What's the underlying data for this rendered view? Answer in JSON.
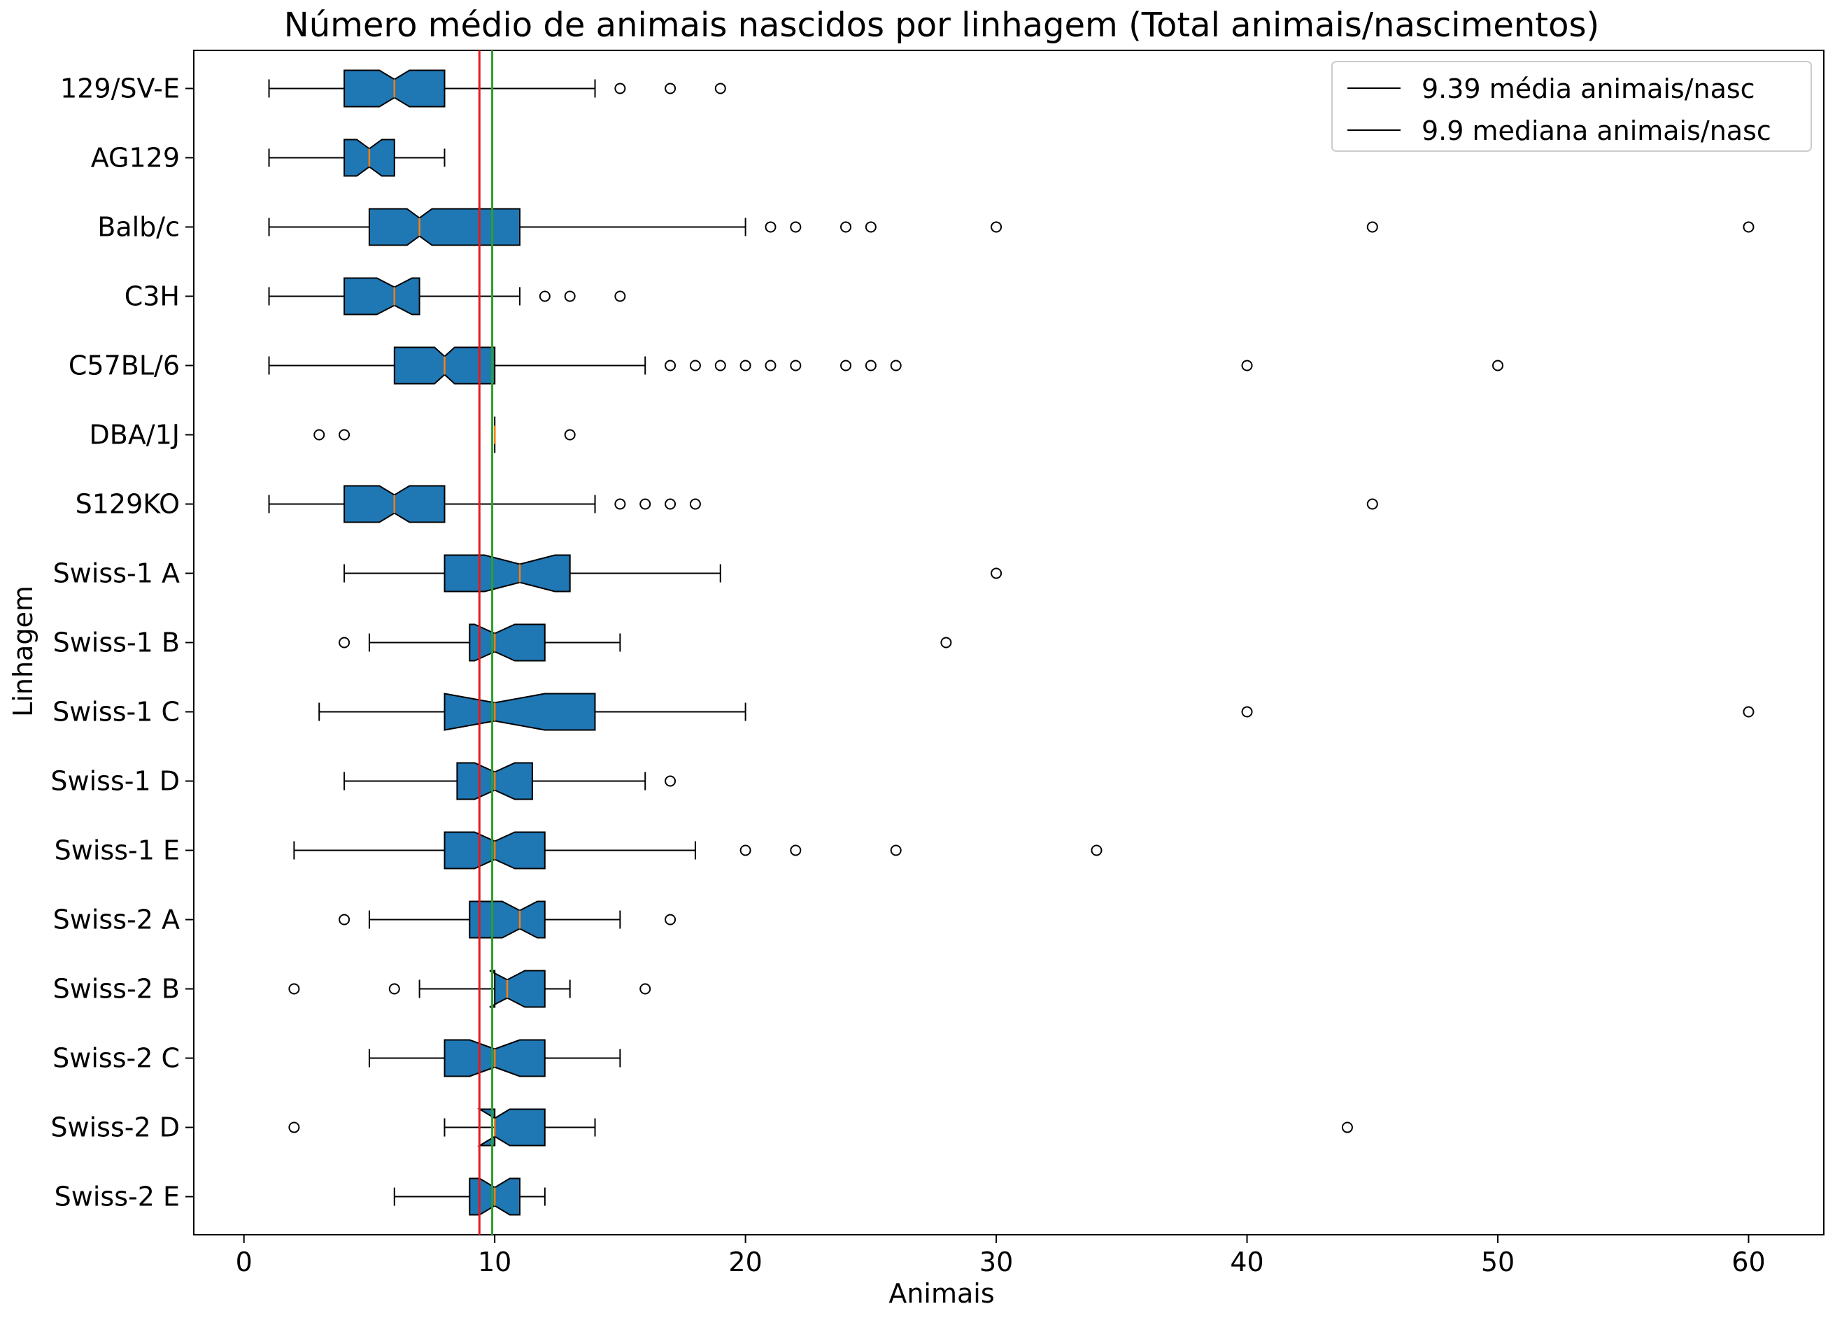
{
  "chart_data": {
    "type": "box",
    "orientation": "horizontal",
    "notched": true,
    "title": "Número médio de animais nascidos por linhagem (Total animais/nascimentos)",
    "xlabel": "Animais",
    "ylabel": "Linhagem",
    "xlim": [
      -2,
      63
    ],
    "xticks": [
      0,
      10,
      20,
      30,
      40,
      50,
      60
    ],
    "box_color": "#1f77b4",
    "median_color": "#ff7f0e",
    "categories": [
      "129/SV-E",
      "AG129",
      "Balb/c",
      "C3H",
      "C57BL/6",
      "DBA/1J",
      "S129KO",
      "Swiss-1 A",
      "Swiss-1 B",
      "Swiss-1 C",
      "Swiss-1 D",
      "Swiss-1 E",
      "Swiss-2 A",
      "Swiss-2 B",
      "Swiss-2 C",
      "Swiss-2 D",
      "Swiss-2 E"
    ],
    "boxes": [
      {
        "label": "129/SV-E",
        "whislo": 1,
        "q1": 4,
        "med": 6,
        "q3": 8,
        "whishi": 14,
        "notch_lo": 5.4,
        "notch_hi": 6.6,
        "fliers": [
          15,
          17,
          19
        ]
      },
      {
        "label": "AG129",
        "whislo": 1,
        "q1": 4,
        "med": 5,
        "q3": 6,
        "whishi": 8,
        "notch_lo": 4.5,
        "notch_hi": 5.5,
        "fliers": []
      },
      {
        "label": "Balb/c",
        "whislo": 1,
        "q1": 5,
        "med": 7,
        "q3": 11,
        "whishi": 20,
        "notch_lo": 6.5,
        "notch_hi": 7.5,
        "fliers": [
          21,
          22,
          24,
          25,
          30,
          45,
          60
        ]
      },
      {
        "label": "C3H",
        "whislo": 1,
        "q1": 4,
        "med": 6,
        "q3": 7,
        "whishi": 11,
        "notch_lo": 5.3,
        "notch_hi": 6.7,
        "fliers": [
          12,
          13,
          15
        ]
      },
      {
        "label": "C57BL/6",
        "whislo": 1,
        "q1": 6,
        "med": 8,
        "q3": 10,
        "whishi": 16,
        "notch_lo": 7.6,
        "notch_hi": 8.4,
        "fliers": [
          17,
          18,
          19,
          20,
          21,
          22,
          24,
          25,
          26,
          40,
          50
        ]
      },
      {
        "label": "DBA/1J",
        "whislo": 10,
        "q1": 10,
        "med": 10,
        "q3": 10,
        "whishi": 10,
        "notch_lo": 10,
        "notch_hi": 10,
        "fliers": [
          3,
          4,
          13
        ]
      },
      {
        "label": "S129KO",
        "whislo": 1,
        "q1": 4,
        "med": 6,
        "q3": 8,
        "whishi": 14,
        "notch_lo": 5.4,
        "notch_hi": 6.6,
        "fliers": [
          15,
          16,
          17,
          18,
          45
        ]
      },
      {
        "label": "Swiss-1 A",
        "whislo": 4,
        "q1": 8,
        "med": 11,
        "q3": 13,
        "whishi": 19,
        "notch_lo": 9.6,
        "notch_hi": 12.4,
        "fliers": [
          30
        ]
      },
      {
        "label": "Swiss-1 B",
        "whislo": 5,
        "q1": 9,
        "med": 10,
        "q3": 12,
        "whishi": 15,
        "notch_lo": 9.2,
        "notch_hi": 10.8,
        "fliers": [
          4,
          28
        ]
      },
      {
        "label": "Swiss-1 C",
        "whislo": 3,
        "q1": 8,
        "med": 10,
        "q3": 14,
        "whishi": 20,
        "notch_lo": 8,
        "notch_hi": 12,
        "fliers": [
          40,
          60
        ]
      },
      {
        "label": "Swiss-1 D",
        "whislo": 4,
        "q1": 8.5,
        "med": 10,
        "q3": 11.5,
        "whishi": 16,
        "notch_lo": 9.2,
        "notch_hi": 10.8,
        "fliers": [
          17
        ]
      },
      {
        "label": "Swiss-1 E",
        "whislo": 2,
        "q1": 8,
        "med": 10,
        "q3": 12,
        "whishi": 18,
        "notch_lo": 9.2,
        "notch_hi": 10.8,
        "fliers": [
          20,
          22,
          26,
          34
        ]
      },
      {
        "label": "Swiss-2 A",
        "whislo": 5,
        "q1": 9,
        "med": 11,
        "q3": 12,
        "whishi": 15,
        "notch_lo": 10.3,
        "notch_hi": 11.7,
        "fliers": [
          4,
          17
        ]
      },
      {
        "label": "Swiss-2 B",
        "whislo": 7,
        "q1": 10,
        "med": 10.5,
        "q3": 12,
        "whishi": 13,
        "notch_lo": 9.8,
        "notch_hi": 11.2,
        "fliers": [
          2,
          6,
          16
        ]
      },
      {
        "label": "Swiss-2 C",
        "whislo": 5,
        "q1": 8,
        "med": 10,
        "q3": 12,
        "whishi": 15,
        "notch_lo": 9,
        "notch_hi": 11,
        "fliers": []
      },
      {
        "label": "Swiss-2 D",
        "whislo": 8,
        "q1": 10,
        "med": 10,
        "q3": 12,
        "whishi": 14,
        "notch_lo": 9.4,
        "notch_hi": 10.6,
        "fliers": [
          2,
          44
        ]
      },
      {
        "label": "Swiss-2 E",
        "whislo": 6,
        "q1": 9,
        "med": 10,
        "q3": 11,
        "whishi": 12,
        "notch_lo": 9.4,
        "notch_hi": 10.6,
        "fliers": []
      }
    ],
    "reference_lines": [
      {
        "label": "9.39 média animais/nasc",
        "value": 9.39,
        "color": "#e41a1c"
      },
      {
        "label": "9.9 mediana animais/nasc",
        "value": 9.9,
        "color": "#2ca02c"
      }
    ],
    "legend_position": "top-right",
    "grid": false
  }
}
